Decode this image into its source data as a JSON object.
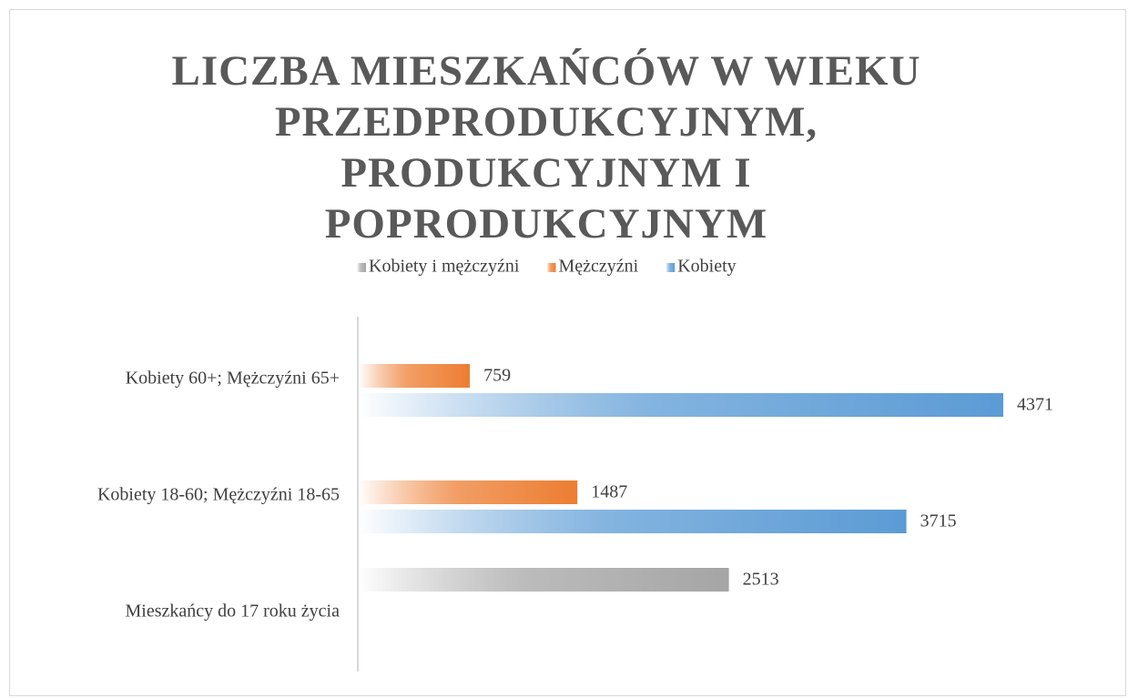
{
  "chart_data": {
    "type": "bar",
    "orientation": "horizontal",
    "title": "LICZBA MIESZKAŃCÓW W WIEKU PRZEDPRODUKCYJNYM, PRODUKCYJNYM I POPRODUKCYJNYM",
    "categories": [
      "Kobiety 60+; Mężczyźni 65+",
      "Kobiety 18-60; Mężczyźni 18-65",
      "Mieszkańcy do 17 roku życia"
    ],
    "series": [
      {
        "name": "Kobiety i mężczyźni",
        "color": "#a5a5a5",
        "values": [
          null,
          null,
          2513
        ]
      },
      {
        "name": "Mężczyźni",
        "color": "#ed7d31",
        "values": [
          759,
          1487,
          null
        ]
      },
      {
        "name": "Kobiety",
        "color": "#5b9bd5",
        "values": [
          4371,
          3715,
          null
        ]
      }
    ],
    "legend": "top",
    "data_labels": true
  }
}
